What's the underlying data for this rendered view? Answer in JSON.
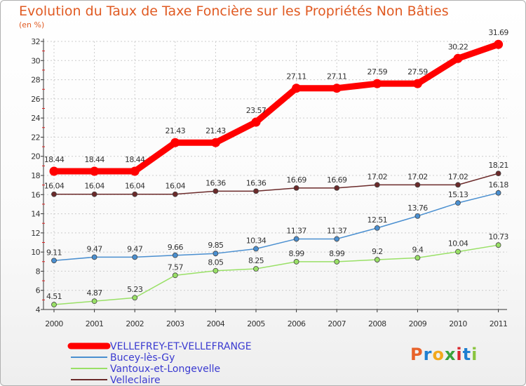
{
  "title": "Evolution du Taux de Taxe Foncière sur les Propriétés Non Bâties",
  "subtitle": "(en %)",
  "logo": {
    "letters": [
      "P",
      "r",
      "o",
      "x",
      "i",
      "t",
      "i"
    ],
    "colors": [
      "#e8622a",
      "#1f7fd0",
      "#f2a81d",
      "#3aa33a",
      "#d9282f",
      "#1f7fd0",
      "#8ac43f"
    ]
  },
  "chart_data": {
    "type": "line",
    "x": [
      "2000",
      "2001",
      "2002",
      "2003",
      "2004",
      "2005",
      "2006",
      "2007",
      "2008",
      "2009",
      "2010",
      "2011"
    ],
    "ylim": [
      4,
      32
    ],
    "yticks": [
      "4",
      "6",
      "8",
      "10",
      "12",
      "14",
      "16",
      "18",
      "20",
      "22",
      "24",
      "26",
      "28",
      "30",
      "32"
    ],
    "grid": true,
    "legend": "bottom-left",
    "series": [
      {
        "name": "VELLEFREY-ET-VELLEFRANGE",
        "color": "#ff0000",
        "values": [
          18.44,
          18.44,
          18.44,
          21.43,
          21.43,
          23.57,
          27.11,
          27.11,
          27.59,
          27.59,
          30.22,
          31.69
        ],
        "labels": [
          "18.44",
          "18.44",
          "18.44",
          "21.43",
          "21.43",
          "23.57",
          "27.11",
          "27.11",
          "27.59",
          "27.59",
          "30.22",
          "31.69"
        ]
      },
      {
        "name": "Bucey-lès-Gy",
        "color": "#4a8fd0",
        "values": [
          9.11,
          9.47,
          9.47,
          9.66,
          9.85,
          10.34,
          11.37,
          11.37,
          12.51,
          13.76,
          15.13,
          16.18
        ],
        "labels": [
          "9.11",
          "9.47",
          "9.47",
          "9.66",
          "9.85",
          "10.34",
          "11.37",
          "11.37",
          "12.51",
          "13.76",
          "15.13",
          "16.18"
        ]
      },
      {
        "name": "Vantoux-et-Longevelle",
        "color": "#99e066",
        "values": [
          4.51,
          4.87,
          5.23,
          7.57,
          8.05,
          8.25,
          8.99,
          8.99,
          9.2,
          9.4,
          10.04,
          10.73
        ],
        "labels": [
          "4.51",
          "4.87",
          "5.23",
          "7.57",
          "8.05",
          "8.25",
          "8.99",
          "8.99",
          "9.2",
          "9.4",
          "10.04",
          "10.73"
        ]
      },
      {
        "name": "Velleclaire",
        "color": "#6b2a2a",
        "values": [
          16.04,
          16.04,
          16.04,
          16.04,
          16.36,
          16.36,
          16.69,
          16.69,
          17.02,
          17.02,
          17.02,
          18.21
        ],
        "labels": [
          "16.04",
          "16.04",
          "16.04",
          "16.04",
          "16.36",
          "16.36",
          "16.69",
          "16.69",
          "17.02",
          "17.02",
          "17.02",
          "18.21"
        ]
      }
    ]
  }
}
